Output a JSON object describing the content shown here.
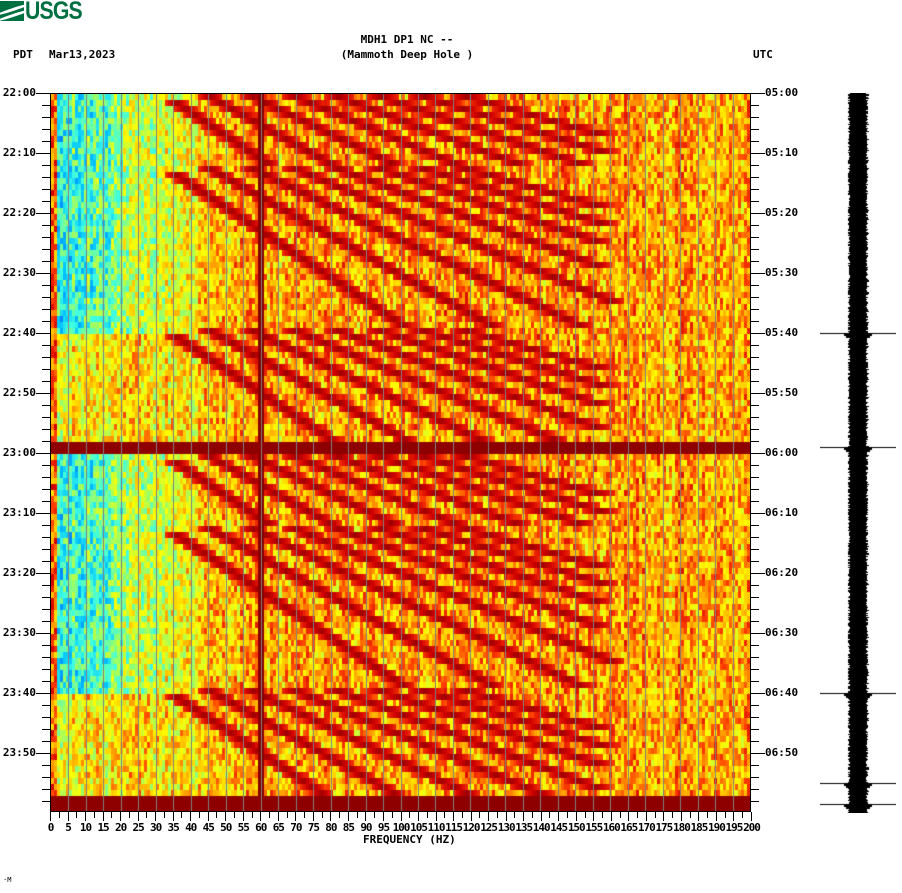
{
  "header": {
    "logo_text": "USGS",
    "station": "MDH1 DP1 NC --",
    "location": "(Mammoth Deep Hole )",
    "left_tz": "PDT",
    "date": "Mar13,2023",
    "right_tz": "UTC"
  },
  "footer_mark": "·M",
  "colors": {
    "logo": "#006f41",
    "dark_red": "#800000",
    "grid": "#808080",
    "colormap": [
      "#0000c8",
      "#0060ff",
      "#00c0ff",
      "#40ffe0",
      "#a0ff60",
      "#ffff00",
      "#ffb000",
      "#ff4000",
      "#d00000",
      "#800000"
    ]
  },
  "chart_data": {
    "type": "heatmap",
    "title": "MDH1 DP1 NC -- (Mammoth Deep Hole )",
    "subtitle": "Mar13,2023",
    "xlabel": "FREQUENCY (HZ)",
    "ylabel_left": "PDT",
    "ylabel_right": "UTC",
    "xlim": [
      0,
      200
    ],
    "x_ticks": [
      0,
      5,
      10,
      15,
      20,
      25,
      30,
      35,
      40,
      45,
      50,
      55,
      60,
      65,
      70,
      75,
      80,
      85,
      90,
      95,
      100,
      105,
      110,
      115,
      120,
      125,
      130,
      135,
      140,
      145,
      150,
      155,
      160,
      165,
      170,
      175,
      180,
      185,
      190,
      195,
      200
    ],
    "y_ticks_left": [
      "22:00",
      "22:10",
      "22:20",
      "22:30",
      "22:40",
      "22:50",
      "23:00",
      "23:10",
      "23:20",
      "23:30",
      "23:40",
      "23:50"
    ],
    "y_ticks_right": [
      "05:00",
      "05:10",
      "05:20",
      "05:30",
      "05:40",
      "05:50",
      "06:00",
      "06:10",
      "06:20",
      "06:30",
      "06:40",
      "06:50"
    ],
    "time_range_minutes": 120,
    "grid": "vertical lines every 5 Hz",
    "features": {
      "constant_line_hz": 60,
      "sweep_cycles_start_minutes": [
        0,
        12,
        39,
        60,
        72,
        99
      ],
      "sweep_cycle_length_minutes": [
        12,
        27,
        21,
        12,
        27,
        20
      ],
      "broadband_bands_minutes": [
        59,
        117.5,
        119
      ],
      "low_freq_high_energy_minutes": [
        [
          40,
          59
        ],
        [
          100,
          118
        ]
      ]
    },
    "seismogram_events_minutes": [
      40,
      59,
      100,
      115,
      118.5
    ]
  },
  "seismogram": {
    "label": "waveform trace"
  }
}
